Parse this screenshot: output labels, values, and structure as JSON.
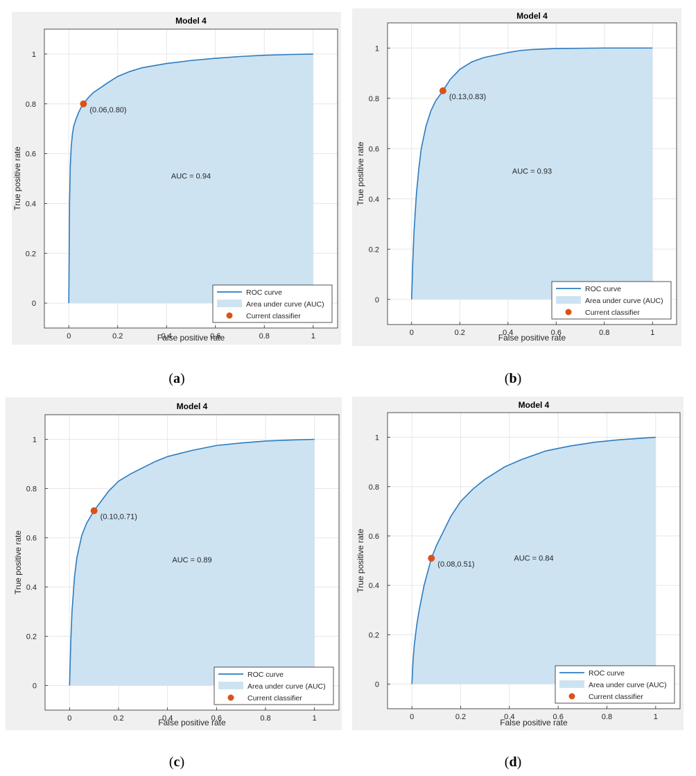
{
  "chart_data": [
    {
      "type": "area",
      "title": "Model 4",
      "xlabel": "False positive rate",
      "ylabel": "True positive rate",
      "xlim": [
        -0.1,
        1.1
      ],
      "ylim": [
        -0.1,
        1.1
      ],
      "xticks": [
        "0",
        "0.2",
        "0.4",
        "0.6",
        "0.8",
        "1"
      ],
      "yticks": [
        "0",
        "0.2",
        "0.4",
        "0.6",
        "0.8",
        "1"
      ],
      "grid": true,
      "legend_position": "bottom-right",
      "legend": [
        "ROC curve",
        "Area under curve (AUC)",
        "Current classifier"
      ],
      "auc_label": "AUC = 0.94",
      "classifier_point": {
        "x": 0.06,
        "y": 0.8,
        "label": "(0.06,0.80)"
      },
      "series": [
        {
          "name": "ROC curve",
          "x": [
            0,
            0.003,
            0.006,
            0.01,
            0.015,
            0.02,
            0.03,
            0.04,
            0.05,
            0.06,
            0.08,
            0.1,
            0.13,
            0.16,
            0.2,
            0.25,
            0.3,
            0.4,
            0.5,
            0.6,
            0.7,
            0.8,
            0.9,
            1.0
          ],
          "y": [
            0,
            0.4,
            0.55,
            0.63,
            0.68,
            0.71,
            0.74,
            0.765,
            0.785,
            0.8,
            0.825,
            0.845,
            0.865,
            0.885,
            0.91,
            0.93,
            0.945,
            0.962,
            0.974,
            0.983,
            0.99,
            0.995,
            0.998,
            1.0
          ]
        }
      ],
      "panel_label": "a"
    },
    {
      "type": "area",
      "title": "Model 4",
      "xlabel": "False positive rate",
      "ylabel": "True positive rate",
      "xlim": [
        -0.1,
        1.1
      ],
      "ylim": [
        -0.1,
        1.1
      ],
      "xticks": [
        "0",
        "0.2",
        "0.4",
        "0.6",
        "0.8",
        "1"
      ],
      "yticks": [
        "0",
        "0.2",
        "0.4",
        "0.6",
        "0.8",
        "1"
      ],
      "grid": true,
      "legend_position": "bottom-right",
      "legend": [
        "ROC curve",
        "Area under curve (AUC)",
        "Current classifier"
      ],
      "auc_label": "AUC = 0.93",
      "classifier_point": {
        "x": 0.13,
        "y": 0.83,
        "label": "(0.13,0.83)"
      },
      "series": [
        {
          "name": "ROC curve",
          "x": [
            0,
            0.005,
            0.01,
            0.02,
            0.03,
            0.04,
            0.06,
            0.08,
            0.1,
            0.13,
            0.16,
            0.2,
            0.25,
            0.3,
            0.35,
            0.4,
            0.45,
            0.5,
            0.6,
            0.7,
            0.8,
            0.9,
            1.0
          ],
          "y": [
            0,
            0.15,
            0.27,
            0.42,
            0.52,
            0.6,
            0.69,
            0.75,
            0.79,
            0.83,
            0.875,
            0.915,
            0.945,
            0.962,
            0.972,
            0.982,
            0.99,
            0.994,
            0.998,
            0.999,
            1.0,
            1.0,
            1.0
          ]
        }
      ],
      "panel_label": "b"
    },
    {
      "type": "area",
      "title": "Model 4",
      "xlabel": "False positive rate",
      "ylabel": "True positive rate",
      "xlim": [
        -0.1,
        1.1
      ],
      "ylim": [
        -0.1,
        1.1
      ],
      "xticks": [
        "0",
        "0.2",
        "0.4",
        "0.6",
        "0.8",
        "1"
      ],
      "yticks": [
        "0",
        "0.2",
        "0.4",
        "0.6",
        "0.8",
        "1"
      ],
      "grid": true,
      "legend_position": "bottom-right",
      "legend": [
        "ROC curve",
        "Area under curve (AUC)",
        "Current classifier"
      ],
      "auc_label": "AUC = 0.89",
      "classifier_point": {
        "x": 0.1,
        "y": 0.71,
        "label": "(0.10,0.71)"
      },
      "series": [
        {
          "name": "ROC curve",
          "x": [
            0,
            0.005,
            0.01,
            0.02,
            0.03,
            0.05,
            0.07,
            0.1,
            0.13,
            0.16,
            0.2,
            0.25,
            0.3,
            0.35,
            0.4,
            0.5,
            0.6,
            0.7,
            0.8,
            0.9,
            1.0
          ],
          "y": [
            0,
            0.18,
            0.3,
            0.44,
            0.52,
            0.61,
            0.66,
            0.71,
            0.75,
            0.79,
            0.83,
            0.86,
            0.885,
            0.91,
            0.93,
            0.955,
            0.975,
            0.985,
            0.993,
            0.997,
            1.0
          ]
        }
      ],
      "panel_label": "c"
    },
    {
      "type": "area",
      "title": "Model 4",
      "xlabel": "False positive rate",
      "ylabel": "True positive rate",
      "xlim": [
        -0.1,
        1.1
      ],
      "ylim": [
        -0.1,
        1.1
      ],
      "xticks": [
        "0",
        "0.2",
        "0.4",
        "0.6",
        "0.8",
        "1"
      ],
      "yticks": [
        "0",
        "0.2",
        "0.4",
        "0.6",
        "0.8",
        "1"
      ],
      "grid": true,
      "legend_position": "bottom-right",
      "legend": [
        "ROC curve",
        "Area under curve (AUC)",
        "Current classifier"
      ],
      "auc_label": "AUC = 0.84",
      "classifier_point": {
        "x": 0.08,
        "y": 0.51,
        "label": "(0.08,0.51)"
      },
      "series": [
        {
          "name": "ROC curve",
          "x": [
            0,
            0.005,
            0.01,
            0.02,
            0.03,
            0.05,
            0.08,
            0.1,
            0.13,
            0.16,
            0.2,
            0.25,
            0.3,
            0.38,
            0.45,
            0.55,
            0.65,
            0.75,
            0.85,
            0.95,
            1.0
          ],
          "y": [
            0,
            0.1,
            0.16,
            0.24,
            0.3,
            0.4,
            0.51,
            0.56,
            0.62,
            0.68,
            0.74,
            0.79,
            0.83,
            0.88,
            0.91,
            0.945,
            0.965,
            0.98,
            0.99,
            0.997,
            1.0
          ]
        }
      ],
      "panel_label": "d"
    }
  ]
}
